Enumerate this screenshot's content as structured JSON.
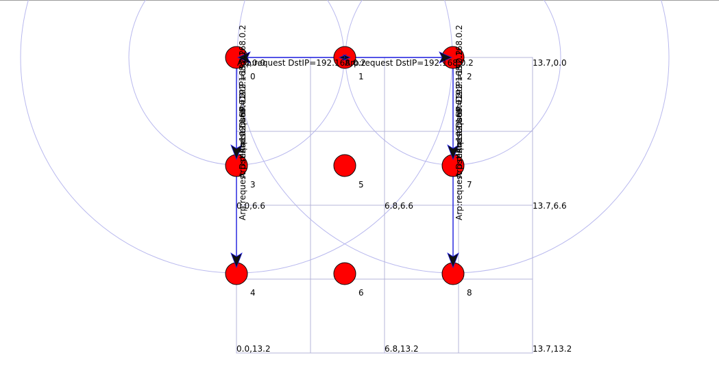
{
  "simulation": {
    "range_circles_on": true,
    "colors": {
      "node_fill": "#ff0000",
      "grid": "#b4b4d8",
      "range": "#b8b8ee",
      "link": "#1a1add"
    }
  },
  "grid_labels": [
    {
      "id": "gl-00",
      "text": "0.0,0.0"
    },
    {
      "id": "gl-137-0",
      "text": "13.7,0.0"
    },
    {
      "id": "gl-066",
      "text": "0.0,6.6"
    },
    {
      "id": "gl-6866",
      "text": "6.8,6.6"
    },
    {
      "id": "gl-1376",
      "text": "13.7,6.6"
    },
    {
      "id": "gl-0132",
      "text": "0.0,13.2"
    },
    {
      "id": "gl-6813",
      "text": "6.8,13.2"
    },
    {
      "id": "gl-1313",
      "text": "13.7,13.2"
    }
  ],
  "nodes": [
    {
      "id": "0",
      "label": "0"
    },
    {
      "id": "1",
      "label": "1"
    },
    {
      "id": "2",
      "label": "2"
    },
    {
      "id": "3",
      "label": "3"
    },
    {
      "id": "5",
      "label": "5"
    },
    {
      "id": "7",
      "label": "7"
    },
    {
      "id": "4",
      "label": "4"
    },
    {
      "id": "6",
      "label": "6"
    },
    {
      "id": "8",
      "label": "8"
    }
  ],
  "messages": [
    {
      "id": "m-1-0",
      "text": "Arp:request DstIP=192.168.0.2"
    },
    {
      "id": "m-1-2",
      "text": "Arp:request DstIP=192.168.0.2"
    },
    {
      "id": "m-0-up",
      "text": "Arp:request DstIP=192.168.0.2"
    },
    {
      "id": "m-2-up",
      "text": "Arp:request DstIP=192.168.0.2"
    },
    {
      "id": "m-0-3",
      "text": "Arp:request DstIP=192.168.0.2"
    },
    {
      "id": "m-3-4",
      "text": "Arp:request DstIP=192.168.0.2"
    },
    {
      "id": "m-2-7",
      "text": "Arp:request DstIP=192.168.0.2"
    },
    {
      "id": "m-7-8",
      "text": "Arp:request DstIP=192.168.0.2"
    }
  ]
}
